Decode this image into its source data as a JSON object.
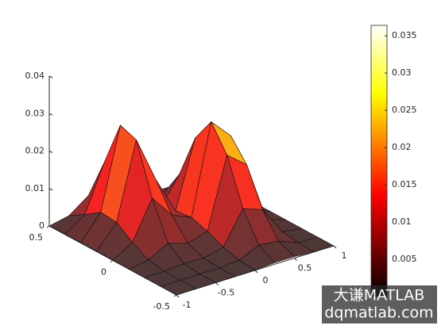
{
  "chart_data": {
    "type": "surface",
    "colormap": "hot",
    "x": [
      -1,
      -0.75,
      -0.5,
      -0.25,
      0,
      0.25,
      0.5,
      0.75,
      1
    ],
    "y": [
      -0.5,
      -0.375,
      -0.25,
      -0.125,
      0,
      0.125,
      0.25,
      0.375,
      0.5
    ],
    "z": [
      [
        0,
        0,
        0,
        0,
        0.0001,
        0.0004,
        0.0004,
        0,
        0
      ],
      [
        0,
        0,
        0,
        0,
        0.0004,
        0.0028,
        0.0022,
        0.0002,
        0
      ],
      [
        0,
        0.0001,
        0.0005,
        0.0003,
        0.0016,
        0.0102,
        0.0083,
        0.0008,
        0
      ],
      [
        0,
        0.0008,
        0.0036,
        0.002,
        0.0035,
        0.0222,
        0.018,
        0.0018,
        0
      ],
      [
        0.0001,
        0.0031,
        0.0133,
        0.0072,
        0.0049,
        0.0288,
        0.0234,
        0.0023,
        0
      ],
      [
        0.0002,
        0.0062,
        0.0266,
        0.0143,
        0.0044,
        0.0222,
        0.018,
        0.0018,
        0
      ],
      [
        0.0002,
        0.0066,
        0.0282,
        0.0151,
        0.0026,
        0.0102,
        0.0083,
        0.0008,
        0
      ],
      [
        0.0001,
        0.0037,
        0.0161,
        0.0086,
        0.001,
        0.0028,
        0.0022,
        0.0002,
        0
      ],
      [
        0,
        0.0011,
        0.0049,
        0.0026,
        0.0003,
        0.0004,
        0.0004,
        0,
        0
      ]
    ],
    "xlim": [
      -1,
      1
    ],
    "ylim": [
      -0.5,
      0.5
    ],
    "zlim": [
      0,
      0.04
    ],
    "xticks": [
      -1,
      -0.5,
      0,
      0.5,
      1
    ],
    "yticks": [
      -0.5,
      0,
      0.5
    ],
    "zticks": [
      0,
      0.01,
      0.02,
      0.03,
      0.04
    ],
    "colorbar": {
      "clim": [
        0,
        0.0364
      ],
      "ticks": [
        0.005,
        0.01,
        0.015,
        0.02,
        0.025,
        0.03,
        0.035
      ]
    }
  },
  "watermark": {
    "line1": "大谦MATLAB",
    "line2": "dqmatlab.com"
  }
}
